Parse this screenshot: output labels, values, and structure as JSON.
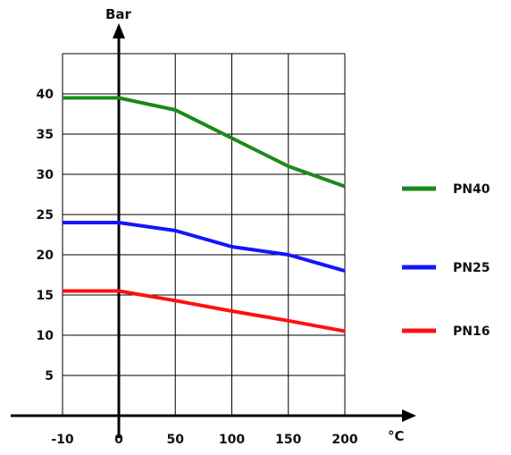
{
  "chart_data": {
    "type": "line",
    "title": "",
    "xlabel": "°C",
    "ylabel": "Bar",
    "x_ticks": [
      "-10",
      "0",
      "50",
      "100",
      "150",
      "200"
    ],
    "y_ticks": [
      "5",
      "10",
      "15",
      "20",
      "25",
      "30",
      "35",
      "40"
    ],
    "xlim": [
      -10,
      200
    ],
    "ylim": [
      0,
      45
    ],
    "grid": true,
    "legend_position": "right",
    "series": [
      {
        "name": "PN40",
        "color": "#1a8a1a",
        "points": [
          [
            -10,
            39.5
          ],
          [
            0,
            39.5
          ],
          [
            50,
            38
          ],
          [
            100,
            34.5
          ],
          [
            150,
            31
          ],
          [
            200,
            28.5
          ]
        ]
      },
      {
        "name": "PN25",
        "color": "#1414ff",
        "points": [
          [
            -10,
            24
          ],
          [
            0,
            24
          ],
          [
            50,
            23
          ],
          [
            100,
            21
          ],
          [
            150,
            20
          ],
          [
            200,
            18
          ]
        ]
      },
      {
        "name": "PN16",
        "color": "#ff1010",
        "points": [
          [
            -10,
            15.5
          ],
          [
            0,
            15.5
          ],
          [
            50,
            14.3
          ],
          [
            100,
            13
          ],
          [
            150,
            11.8
          ],
          [
            200,
            10.5
          ]
        ]
      }
    ]
  }
}
